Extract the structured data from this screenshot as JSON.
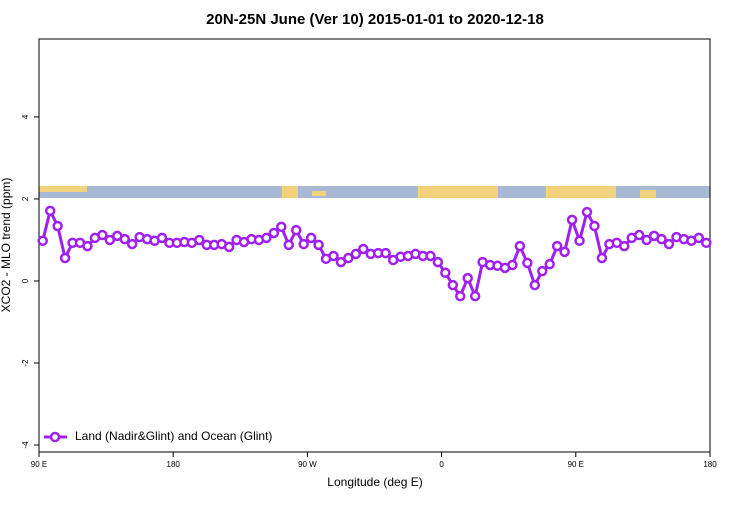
{
  "chart_data": {
    "type": "line",
    "title": "20N-25N June (Ver 10)   2015-01-01 to 2020-12-18",
    "xlabel": "Longitude (deg E)",
    "ylabel": "XCO2 - MLO trend (ppm)",
    "xlim": [
      90,
      540
    ],
    "ylim": [
      -4.17,
      5.9
    ],
    "xticks": [
      {
        "value": 90,
        "label": "90 E"
      },
      180,
      {
        "value": 270,
        "label": "90 W"
      },
      {
        "value": 360,
        "label": "0"
      },
      {
        "value": 450,
        "label": "90 E"
      },
      {
        "value": 540,
        "label": "180"
      }
    ],
    "yticks": [
      -4,
      -2,
      0,
      2,
      4
    ],
    "legend": "bottom-left",
    "x": [
      92.5,
      97.5,
      102.5,
      107.5,
      112.5,
      117.5,
      122.5,
      127.5,
      132.5,
      137.5,
      142.5,
      147.5,
      152.5,
      157.5,
      162.5,
      167.5,
      172.5,
      177.5,
      182.5,
      187.5,
      192.5,
      197.5,
      202.5,
      207.5,
      212.5,
      217.5,
      222.5,
      227.5,
      232.5,
      237.5,
      242.5,
      247.5,
      252.5,
      257.5,
      262.5,
      267.5,
      272.5,
      277.5,
      282.5,
      287.5,
      292.5,
      297.5,
      302.5,
      307.5,
      312.5,
      317.5,
      322.5,
      327.5,
      332.5,
      337.5,
      342.5,
      347.5,
      352.5,
      357.5,
      362.5,
      367.5,
      372.5,
      377.5,
      382.5,
      387.5,
      392.5,
      397.5,
      402.5,
      407.5,
      412.5,
      417.5,
      422.5,
      427.5,
      432.5,
      437.5,
      442.5,
      447.5,
      452.5,
      457.5,
      462.5,
      467.5,
      472.5,
      477.5,
      482.5,
      487.5,
      492.5,
      497.5,
      502.5,
      507.5,
      512.5,
      517.5,
      522.5,
      527.5,
      532.5,
      537.5
    ],
    "series": [
      {
        "name": "Land (Nadir&Glint) and Ocean (Glint)",
        "color": "#a020f0",
        "values": [
          0.98,
          1.71,
          1.34,
          0.56,
          0.93,
          0.93,
          0.85,
          1.05,
          1.12,
          1.0,
          1.1,
          1.02,
          0.9,
          1.07,
          1.02,
          0.98,
          1.05,
          0.93,
          0.93,
          0.95,
          0.93,
          1.0,
          0.88,
          0.88,
          0.9,
          0.83,
          1.0,
          0.95,
          1.02,
          1.0,
          1.05,
          1.17,
          1.32,
          0.88,
          1.24,
          0.9,
          1.05,
          0.88,
          0.54,
          0.61,
          0.46,
          0.56,
          0.66,
          0.78,
          0.66,
          0.68,
          0.68,
          0.51,
          0.59,
          0.61,
          0.66,
          0.61,
          0.61,
          0.46,
          0.2,
          -0.1,
          -0.37,
          0.07,
          -0.37,
          0.46,
          0.39,
          0.37,
          0.32,
          0.39,
          0.85,
          0.44,
          -0.1,
          0.24,
          0.41,
          0.85,
          0.71,
          1.49,
          0.98,
          1.68,
          1.34,
          0.56,
          0.9,
          0.93,
          0.85,
          1.05,
          1.12,
          1.0,
          1.1,
          1.02,
          0.9,
          1.07,
          1.02,
          0.98,
          1.05,
          0.93
        ]
      }
    ]
  }
}
